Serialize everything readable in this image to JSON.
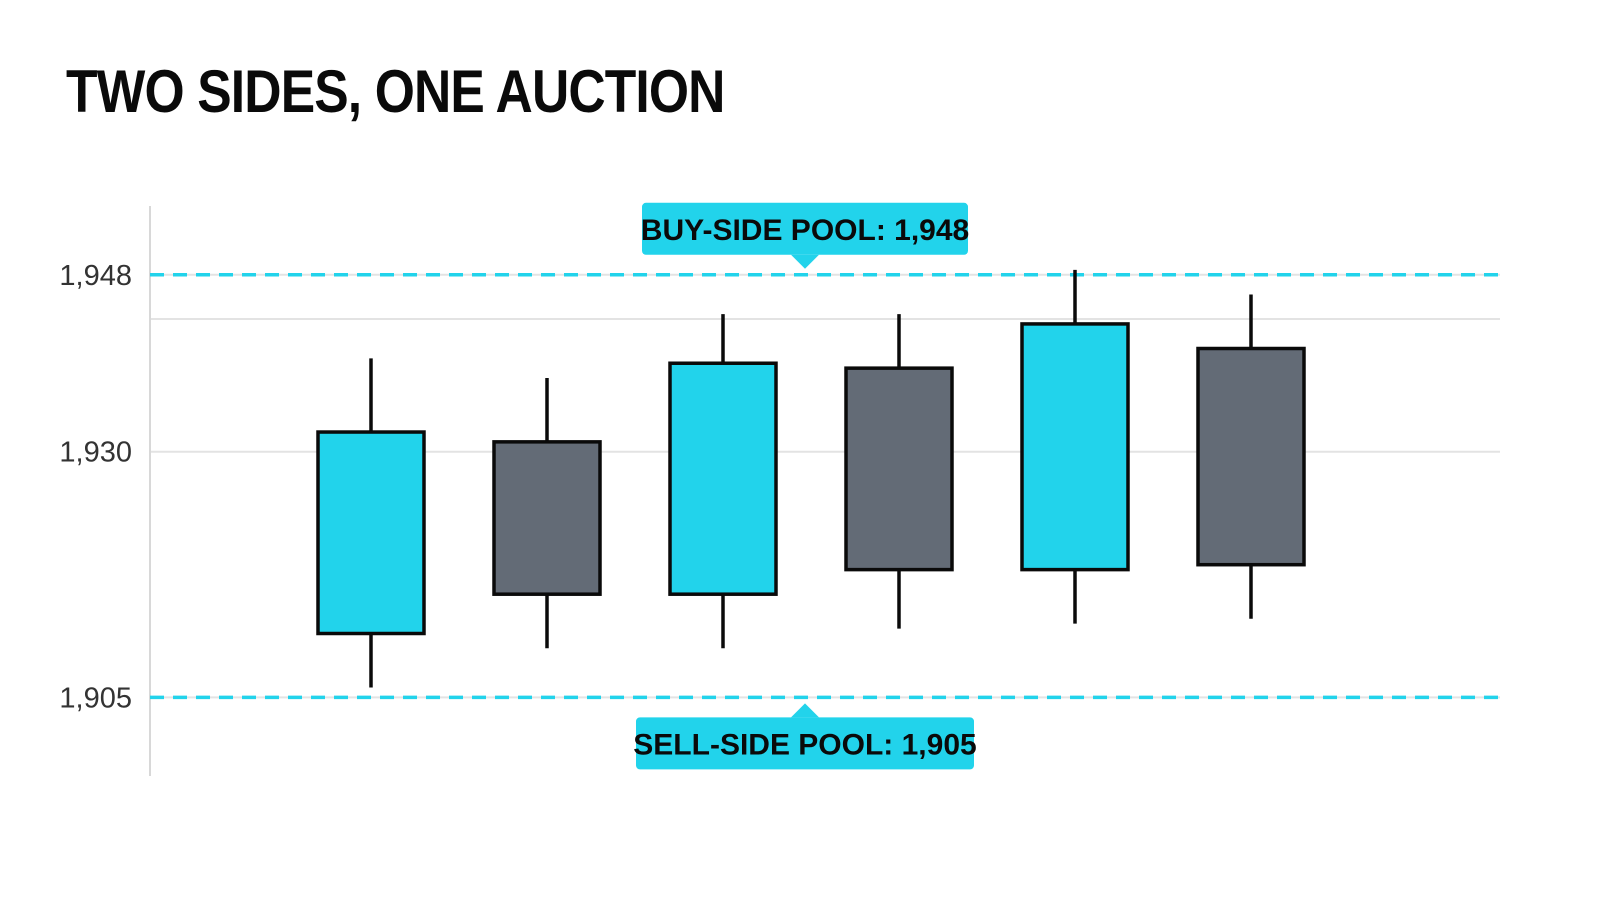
{
  "title": "TWO SIDES, ONE AUCTION",
  "colors": {
    "accent": "#22d3eb",
    "bull": "#22d3eb",
    "bear": "#636b76",
    "outline": "#0a0a0a",
    "grid": "#e3e3e3",
    "axis": "#d8d8d8"
  },
  "chart_data": {
    "type": "candlestick",
    "ylim": [
      1897,
      1955
    ],
    "yticks": [
      {
        "value": 1905,
        "label": "1,905"
      },
      {
        "value": 1930,
        "label": "1,930"
      },
      {
        "value": 1948,
        "label": "1,948"
      }
    ],
    "candles": [
      {
        "open": 1911.5,
        "high": 1939.5,
        "low": 1906.0,
        "close": 1932.0,
        "direction": "up"
      },
      {
        "open": 1931.0,
        "high": 1937.5,
        "low": 1910.0,
        "close": 1915.5,
        "direction": "down"
      },
      {
        "open": 1915.5,
        "high": 1944.0,
        "low": 1910.0,
        "close": 1939.0,
        "direction": "up"
      },
      {
        "open": 1938.5,
        "high": 1944.0,
        "low": 1912.0,
        "close": 1918.0,
        "direction": "down"
      },
      {
        "open": 1918.0,
        "high": 1948.5,
        "low": 1912.5,
        "close": 1943.0,
        "direction": "up"
      },
      {
        "open": 1940.5,
        "high": 1946.0,
        "low": 1913.0,
        "close": 1918.5,
        "direction": "down"
      }
    ],
    "levels": [
      {
        "name": "buy-side",
        "value": 1948,
        "label": "BUY-SIDE POOL: 1,948",
        "position": "above"
      },
      {
        "name": "sell-side",
        "value": 1905,
        "label": "SELL-SIDE POOL: 1,905",
        "position": "below"
      }
    ],
    "extra_gridline": 1943.5,
    "grid": true
  }
}
